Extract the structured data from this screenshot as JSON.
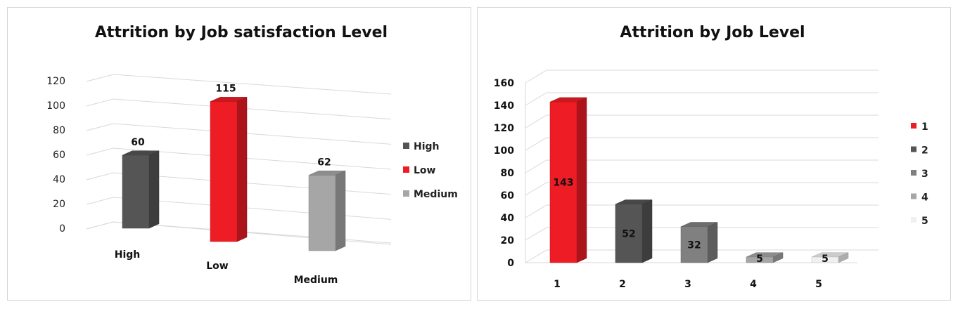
{
  "chart_data": [
    {
      "type": "bar",
      "title": "Attrition by Job satisfaction Level",
      "categories": [
        "High",
        "Low",
        "Medium"
      ],
      "values": [
        60,
        115,
        62
      ],
      "colors": [
        "#555555",
        "#ee1c25",
        "#a6a6a6"
      ],
      "ylim": [
        0,
        120
      ],
      "yticks": [
        "0",
        "20",
        "40",
        "60",
        "80",
        "100",
        "120"
      ],
      "legend": {
        "position": "right",
        "entries": [
          "High",
          "Low",
          "Medium"
        ]
      },
      "grid": true
    },
    {
      "type": "bar",
      "title": "Attrition by Job Level",
      "categories": [
        "1",
        "2",
        "3",
        "4",
        "5"
      ],
      "values": [
        143,
        52,
        32,
        5,
        5
      ],
      "colors": [
        "#ee1c25",
        "#555555",
        "#808080",
        "#a6a6a6",
        "#f0f0f0"
      ],
      "ylim": [
        0,
        160
      ],
      "yticks": [
        "0",
        "20",
        "40",
        "60",
        "80",
        "100",
        "120",
        "140",
        "160"
      ],
      "legend": {
        "position": "right",
        "entries": [
          "1",
          "2",
          "3",
          "4",
          "5"
        ]
      },
      "grid": true
    }
  ]
}
